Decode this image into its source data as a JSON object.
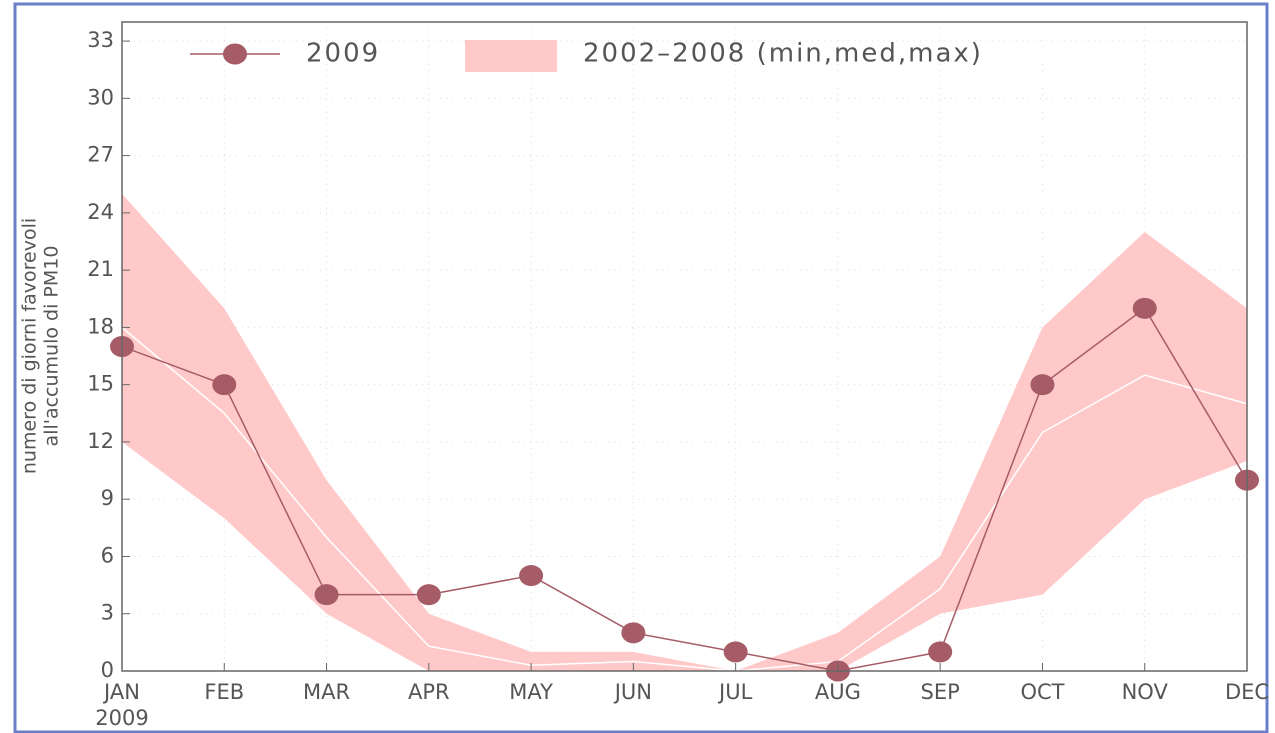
{
  "chart_data": {
    "type": "line",
    "ylabel": [
      "numero di giorni favorevoli",
      "all'accumulo di PM10"
    ],
    "categories": [
      "JAN",
      "FEB",
      "MAR",
      "APR",
      "MAY",
      "JUN",
      "JUL",
      "AUG",
      "SEP",
      "OCT",
      "NOV",
      "DEC"
    ],
    "x_year": "2009",
    "ylim": [
      0,
      34
    ],
    "yticks": [
      0,
      3,
      6,
      9,
      12,
      15,
      18,
      21,
      24,
      27,
      30,
      33
    ],
    "grid": true,
    "series": [
      {
        "name": "2009",
        "color": "#a65c66",
        "values": [
          17,
          15,
          4,
          4,
          5,
          2,
          1,
          0,
          1,
          15,
          19,
          10
        ]
      }
    ],
    "band": {
      "name": "2002–2008 (min,med,max)",
      "color": "#ffc9c9",
      "median_color": "#ffffff",
      "min": [
        12,
        8,
        3,
        0,
        0,
        0,
        0,
        0,
        3,
        4,
        9,
        11
      ],
      "med": [
        18,
        13.5,
        7,
        1.3,
        0.3,
        0.5,
        0,
        0.5,
        4.3,
        12.5,
        15.5,
        14
      ],
      "max": [
        25,
        19,
        10,
        3,
        1,
        1,
        0,
        2,
        6,
        18,
        23,
        19
      ]
    }
  }
}
